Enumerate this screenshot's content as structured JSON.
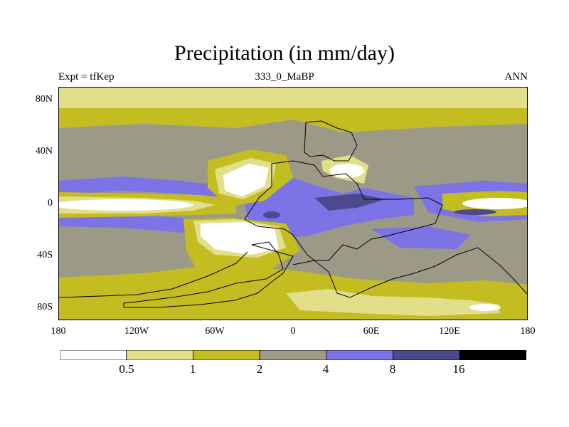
{
  "chart_data": {
    "type": "heatmap",
    "title": "Precipitation (in mm/day)",
    "subtitle_left": "Expt = tfKep",
    "subtitle_center": "333_0_MaBP",
    "subtitle_right": "ANN",
    "x_ticks": [
      "180",
      "120W",
      "60W",
      "0",
      "60E",
      "120E",
      "180"
    ],
    "y_ticks": [
      "80N",
      "40N",
      "0",
      "40S",
      "80S"
    ],
    "xlim": [
      -180,
      180
    ],
    "ylim": [
      -90,
      90
    ],
    "colorbar": {
      "levels": [
        "0.5",
        "1",
        "2",
        "4",
        "8",
        "16"
      ],
      "colors": [
        "#ffffff",
        "#e2df8a",
        "#c3bd22",
        "#9c9a86",
        "#7b73e6",
        "#4c4a8c",
        "#000000"
      ]
    }
  }
}
